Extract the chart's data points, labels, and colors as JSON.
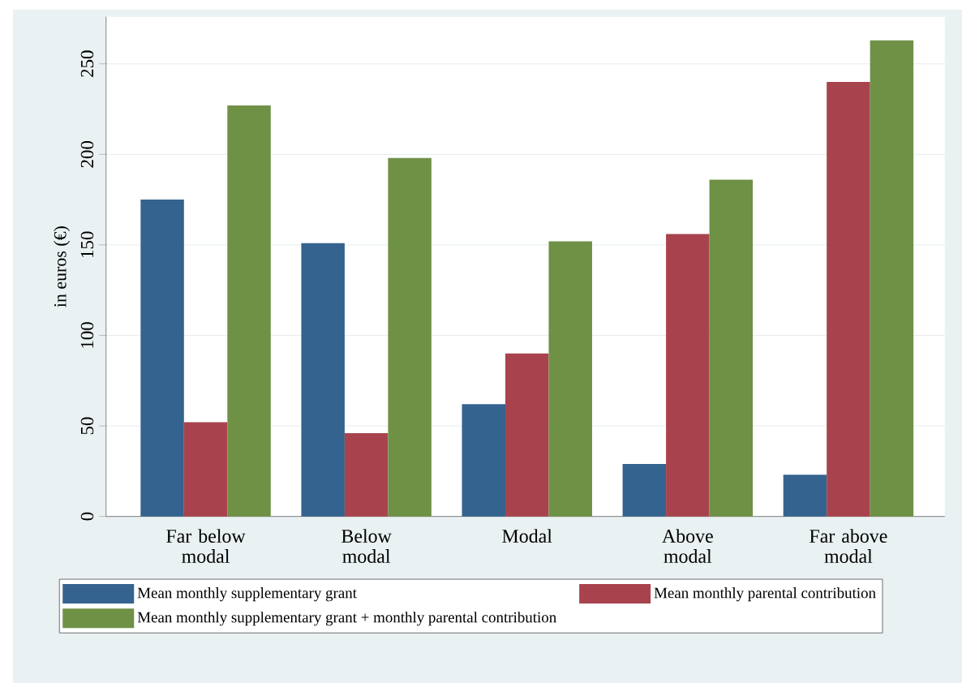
{
  "chart_data": {
    "type": "bar",
    "ylabel": "in euros (€)",
    "categories": [
      "Far below modal",
      "Below modal",
      "Modal",
      "Above modal",
      "Far above modal"
    ],
    "series": [
      {
        "name": "Mean monthly supplementary grant",
        "color": "#35638f",
        "values": [
          175,
          151,
          62,
          29,
          23
        ]
      },
      {
        "name": "Mean monthly parental contribution",
        "color": "#a8434e",
        "values": [
          52,
          46,
          90,
          156,
          240
        ]
      },
      {
        "name": "Mean monthly supplementary grant + monthly parental contribution",
        "color": "#6f9146",
        "values": [
          227,
          198,
          152,
          186,
          263
        ]
      }
    ],
    "ylim": [
      0,
      276
    ],
    "yticks": [
      0,
      50,
      100,
      150,
      200,
      250
    ],
    "grid": "y",
    "legend": "bottom"
  }
}
